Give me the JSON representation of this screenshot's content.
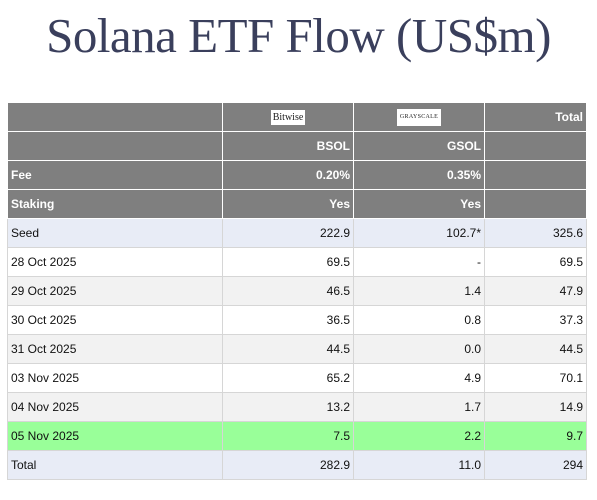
{
  "title": "Solana ETF Flow (US$m)",
  "header": {
    "issuers": [
      "Bitwise",
      "GRAYSCALE"
    ],
    "total_label": "Total",
    "tickers": [
      "BSOL",
      "GSOL"
    ],
    "fee": {
      "label": "Fee",
      "values": [
        "0.20%",
        "0.35%"
      ]
    },
    "staking": {
      "label": "Staking",
      "values": [
        "Yes",
        "Yes"
      ]
    }
  },
  "rows": [
    {
      "label": "Seed",
      "bsol": "222.9",
      "gsol": "102.7*",
      "total": "325.6"
    },
    {
      "label": "28 Oct 2025",
      "bsol": "69.5",
      "gsol": "-",
      "total": "69.5"
    },
    {
      "label": "29 Oct 2025",
      "bsol": "46.5",
      "gsol": "1.4",
      "total": "47.9"
    },
    {
      "label": "30 Oct 2025",
      "bsol": "36.5",
      "gsol": "0.8",
      "total": "37.3"
    },
    {
      "label": "31 Oct 2025",
      "bsol": "44.5",
      "gsol": "0.0",
      "total": "44.5"
    },
    {
      "label": "03 Nov 2025",
      "bsol": "65.2",
      "gsol": "4.9",
      "total": "70.1"
    },
    {
      "label": "04 Nov 2025",
      "bsol": "13.2",
      "gsol": "1.7",
      "total": "14.9"
    },
    {
      "label": "05 Nov 2025",
      "bsol": "7.5",
      "gsol": "2.2",
      "total": "9.7"
    },
    {
      "label": "Total",
      "bsol": "282.9",
      "gsol": "11.0",
      "total": "294"
    }
  ],
  "colors": {
    "header_bg": "#7f7f7f",
    "seed_bg": "#e8ecf6",
    "highlight_bg": "#99ff99",
    "title_color": "#3a3f5c"
  }
}
